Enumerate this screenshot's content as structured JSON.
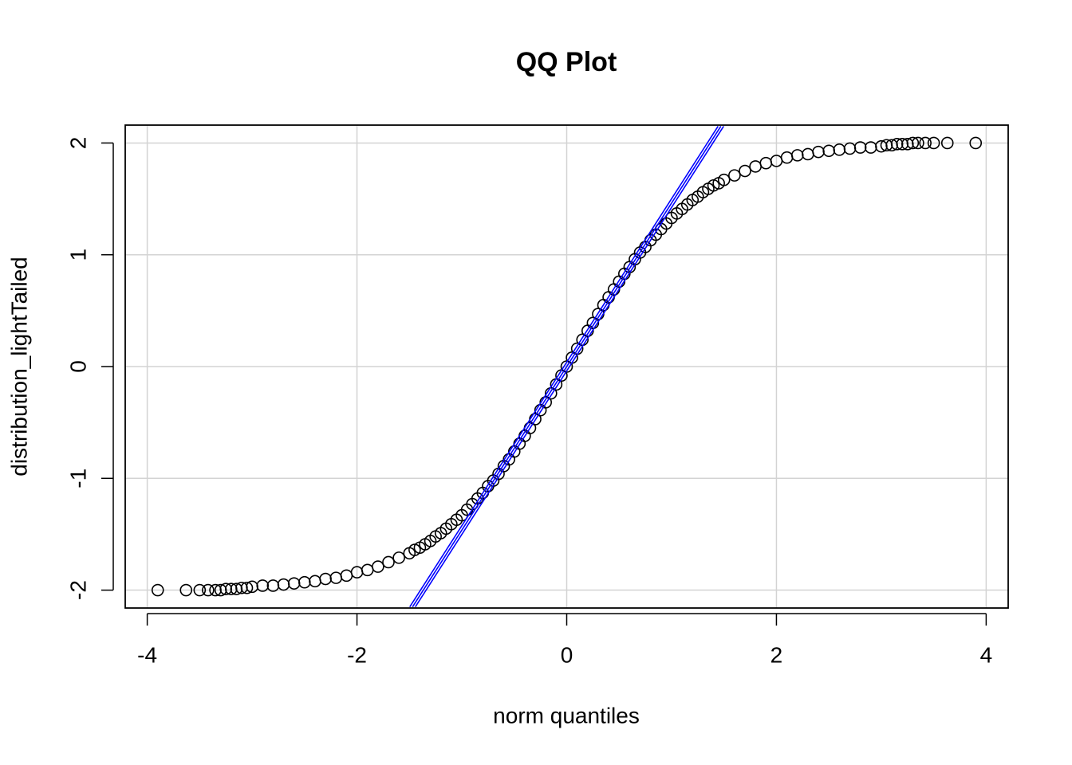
{
  "chart_data": {
    "type": "scatter",
    "title": "QQ Plot",
    "x_label": "norm quantiles",
    "y_label": "distribution_lightTailed",
    "xlim": [
      -4.21,
      4.21
    ],
    "ylim": [
      -2.16,
      2.16
    ],
    "xticks": [
      -4,
      -2,
      0,
      2,
      4
    ],
    "yticks": [
      -2,
      -1,
      0,
      1,
      2
    ],
    "grid": true,
    "series": [
      {
        "color": "#000000",
        "x": [
          -3.9,
          -3.63,
          -3.5,
          -3.42,
          -3.35,
          -3.3,
          -3.25,
          -3.2,
          -3.15,
          -3.1,
          -3.05,
          -3.0,
          -2.9,
          -2.8,
          -2.7,
          -2.6,
          -2.5,
          -2.4,
          -2.3,
          -2.2,
          -2.1,
          -2.0,
          -1.9,
          -1.8,
          -1.7,
          -1.6,
          -1.5,
          -1.45,
          -1.4,
          -1.35,
          -1.3,
          -1.25,
          -1.2,
          -1.15,
          -1.1,
          -1.05,
          -1.0,
          -0.95,
          -0.9,
          -0.85,
          -0.8,
          -0.75,
          -0.7,
          -0.65,
          -0.6,
          -0.55,
          -0.5,
          -0.45,
          -0.4,
          -0.35,
          -0.3,
          -0.25,
          -0.2,
          -0.15,
          -0.1,
          -0.05,
          0,
          0.05,
          0.1,
          0.15,
          0.2,
          0.25,
          0.3,
          0.35,
          0.4,
          0.45,
          0.5,
          0.55,
          0.6,
          0.65,
          0.7,
          0.75,
          0.8,
          0.85,
          0.9,
          0.95,
          1.0,
          1.05,
          1.1,
          1.15,
          1.2,
          1.25,
          1.3,
          1.35,
          1.4,
          1.45,
          1.5,
          1.6,
          1.7,
          1.8,
          1.9,
          2.0,
          2.1,
          2.2,
          2.3,
          2.4,
          2.5,
          2.6,
          2.7,
          2.8,
          2.9,
          3.0,
          3.05,
          3.1,
          3.15,
          3.2,
          3.25,
          3.3,
          3.35,
          3.42,
          3.5,
          3.63,
          3.9
        ],
        "values": [
          -2,
          -2,
          -2,
          -2,
          -2,
          -2,
          -1.99,
          -1.99,
          -1.99,
          -1.98,
          -1.98,
          -1.97,
          -1.96,
          -1.96,
          -1.95,
          -1.94,
          -1.93,
          -1.92,
          -1.9,
          -1.89,
          -1.87,
          -1.84,
          -1.82,
          -1.79,
          -1.75,
          -1.71,
          -1.67,
          -1.64,
          -1.62,
          -1.59,
          -1.56,
          -1.52,
          -1.49,
          -1.45,
          -1.41,
          -1.37,
          -1.33,
          -1.28,
          -1.23,
          -1.18,
          -1.13,
          -1.07,
          -1.02,
          -0.96,
          -0.89,
          -0.83,
          -0.76,
          -0.69,
          -0.62,
          -0.55,
          -0.47,
          -0.39,
          -0.32,
          -0.24,
          -0.16,
          -0.08,
          0,
          0.08,
          0.16,
          0.24,
          0.32,
          0.39,
          0.47,
          0.55,
          0.62,
          0.69,
          0.76,
          0.83,
          0.89,
          0.96,
          1.02,
          1.07,
          1.13,
          1.18,
          1.23,
          1.28,
          1.33,
          1.37,
          1.41,
          1.45,
          1.49,
          1.52,
          1.56,
          1.59,
          1.62,
          1.64,
          1.67,
          1.71,
          1.75,
          1.79,
          1.82,
          1.84,
          1.87,
          1.89,
          1.9,
          1.92,
          1.93,
          1.94,
          1.95,
          1.96,
          1.96,
          1.97,
          1.98,
          1.98,
          1.99,
          1.99,
          1.99,
          2,
          2,
          2,
          2,
          2,
          2
        ]
      }
    ],
    "reference_line": {
      "color": "#0000ff",
      "x": [
        -1.47,
        1.47
      ],
      "values": [
        -2.15,
        2.15
      ]
    }
  }
}
